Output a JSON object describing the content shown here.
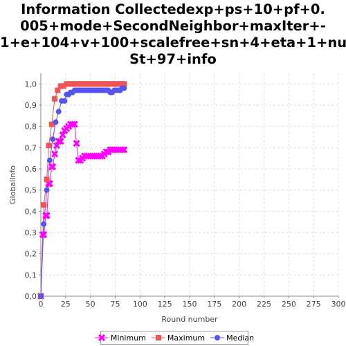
{
  "title_lines": [
    "Information Collectedexp+ps+10+pf+0.",
    "005+mode+SecondNeighbor+maxIter+-",
    "1+e+104+v+100+scalefree+sn+4+eta+1+num",
    "St+97+info"
  ],
  "chart_data": {
    "type": "line",
    "title": "Information Collectedexp+ps+10+pf+0.005+mode+SecondNeighbor+maxIter+-1+e+104+v+100+scalefree+sn+4+eta+1+numSt+97+info",
    "xlabel": "Round number",
    "ylabel": "GlobalInfo",
    "xlim": [
      0,
      300
    ],
    "ylim": [
      0,
      1.05
    ],
    "x_ticks": [
      "0",
      "25",
      "50",
      "75",
      "100",
      "125",
      "150",
      "175",
      "200",
      "225",
      "250",
      "275",
      "300"
    ],
    "y_ticks": [
      "0,0",
      "0,1",
      "0,2",
      "0,3",
      "0,4",
      "0,5",
      "0,6",
      "0,7",
      "0,8",
      "0,9",
      "1,0"
    ],
    "grid": true,
    "legend_position": "bottom",
    "series": [
      {
        "name": "Minimum",
        "color": "#ff00ff",
        "marker": "x",
        "points": [
          [
            0,
            0.0
          ],
          [
            2,
            0.29
          ],
          [
            3,
            0.29
          ],
          [
            5,
            0.38
          ],
          [
            6,
            0.38
          ],
          [
            8,
            0.53
          ],
          [
            9,
            0.53
          ],
          [
            11,
            0.61
          ],
          [
            12,
            0.61
          ],
          [
            14,
            0.67
          ],
          [
            16,
            0.71
          ],
          [
            18,
            0.73
          ],
          [
            20,
            0.73
          ],
          [
            22,
            0.76
          ],
          [
            24,
            0.78
          ],
          [
            26,
            0.79
          ],
          [
            28,
            0.8
          ],
          [
            30,
            0.81
          ],
          [
            32,
            0.81
          ],
          [
            34,
            0.81
          ],
          [
            36,
            0.72
          ],
          [
            38,
            0.64
          ],
          [
            40,
            0.64
          ],
          [
            42,
            0.65
          ],
          [
            44,
            0.66
          ],
          [
            46,
            0.66
          ],
          [
            48,
            0.66
          ],
          [
            50,
            0.66
          ],
          [
            52,
            0.66
          ],
          [
            54,
            0.66
          ],
          [
            56,
            0.66
          ],
          [
            58,
            0.66
          ],
          [
            60,
            0.66
          ],
          [
            62,
            0.66
          ],
          [
            64,
            0.67
          ],
          [
            66,
            0.68
          ],
          [
            68,
            0.68
          ],
          [
            70,
            0.69
          ],
          [
            72,
            0.69
          ],
          [
            74,
            0.69
          ],
          [
            76,
            0.69
          ],
          [
            78,
            0.69
          ],
          [
            80,
            0.69
          ],
          [
            82,
            0.69
          ],
          [
            84,
            0.69
          ]
        ]
      },
      {
        "name": "Maximum",
        "color": "#ee5555",
        "marker": "square",
        "points": [
          [
            0,
            0.0
          ],
          [
            3,
            0.43
          ],
          [
            6,
            0.55
          ],
          [
            8,
            0.71
          ],
          [
            11,
            0.81
          ],
          [
            14,
            0.93
          ],
          [
            17,
            0.97
          ],
          [
            20,
            0.99
          ],
          [
            23,
            0.99
          ],
          [
            26,
            1.0
          ],
          [
            28,
            1.0
          ],
          [
            30,
            1.0
          ],
          [
            32,
            1.0
          ],
          [
            34,
            1.0
          ],
          [
            36,
            1.0
          ],
          [
            38,
            1.0
          ],
          [
            40,
            1.0
          ],
          [
            42,
            1.0
          ],
          [
            44,
            1.0
          ],
          [
            46,
            1.0
          ],
          [
            48,
            1.0
          ],
          [
            50,
            1.0
          ],
          [
            52,
            1.0
          ],
          [
            54,
            1.0
          ],
          [
            56,
            1.0
          ],
          [
            58,
            1.0
          ],
          [
            60,
            1.0
          ],
          [
            62,
            1.0
          ],
          [
            64,
            1.0
          ],
          [
            66,
            1.0
          ],
          [
            68,
            1.0
          ],
          [
            70,
            1.0
          ],
          [
            72,
            1.0
          ],
          [
            74,
            1.0
          ],
          [
            76,
            1.0
          ],
          [
            78,
            1.0
          ],
          [
            80,
            1.0
          ],
          [
            82,
            1.0
          ],
          [
            84,
            1.0
          ]
        ]
      },
      {
        "name": "Median",
        "color": "#5555ee",
        "marker": "circle",
        "points": [
          [
            0,
            0.0
          ],
          [
            3,
            0.34
          ],
          [
            6,
            0.5
          ],
          [
            9,
            0.64
          ],
          [
            12,
            0.74
          ],
          [
            15,
            0.82
          ],
          [
            18,
            0.87
          ],
          [
            21,
            0.92
          ],
          [
            24,
            0.92
          ],
          [
            26,
            0.95
          ],
          [
            28,
            0.95
          ],
          [
            30,
            0.96
          ],
          [
            32,
            0.96
          ],
          [
            34,
            0.97
          ],
          [
            36,
            0.97
          ],
          [
            38,
            0.97
          ],
          [
            40,
            0.97
          ],
          [
            42,
            0.97
          ],
          [
            44,
            0.97
          ],
          [
            46,
            0.97
          ],
          [
            48,
            0.97
          ],
          [
            50,
            0.97
          ],
          [
            52,
            0.97
          ],
          [
            54,
            0.97
          ],
          [
            56,
            0.97
          ],
          [
            58,
            0.97
          ],
          [
            60,
            0.97
          ],
          [
            62,
            0.97
          ],
          [
            64,
            0.97
          ],
          [
            66,
            0.97
          ],
          [
            68,
            0.97
          ],
          [
            70,
            0.96
          ],
          [
            72,
            0.96
          ],
          [
            74,
            0.97
          ],
          [
            76,
            0.97
          ],
          [
            78,
            0.97
          ],
          [
            80,
            0.97
          ],
          [
            82,
            0.98
          ],
          [
            84,
            0.98
          ]
        ]
      }
    ]
  }
}
